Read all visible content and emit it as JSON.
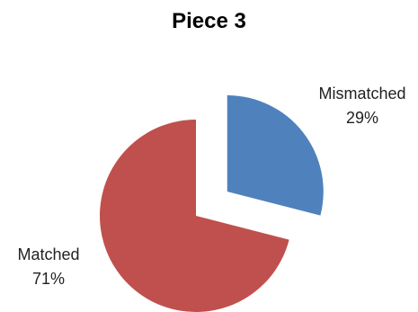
{
  "chart_data": {
    "type": "pie",
    "title": "Piece 3",
    "slices": [
      {
        "label": "Mismatched",
        "percent_label": "29%",
        "value": 29,
        "color": "#4F81BD",
        "exploded": true
      },
      {
        "label": "Matched",
        "percent_label": "71%",
        "value": 71,
        "color": "#C0504D",
        "exploded": false
      }
    ],
    "start_angle_deg": 0,
    "direction": "clockwise",
    "legend": "none"
  }
}
